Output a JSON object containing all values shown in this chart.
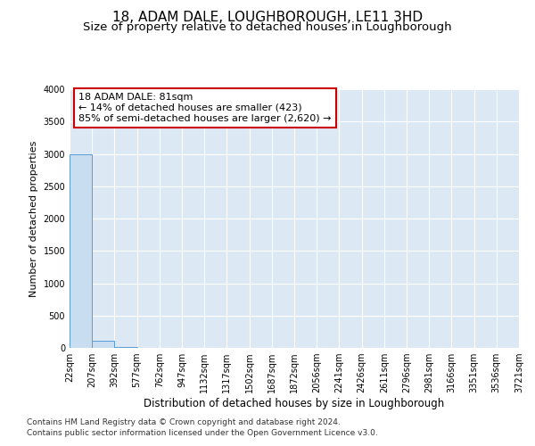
{
  "title": "18, ADAM DALE, LOUGHBOROUGH, LE11 3HD",
  "subtitle": "Size of property relative to detached houses in Loughborough",
  "xlabel": "Distribution of detached houses by size in Loughborough",
  "ylabel": "Number of detached properties",
  "footnote1": "Contains HM Land Registry data © Crown copyright and database right 2024.",
  "footnote2": "Contains public sector information licensed under the Open Government Licence v3.0.",
  "annotation_line1": "18 ADAM DALE: 81sqm",
  "annotation_line2": "← 14% of detached houses are smaller (423)",
  "annotation_line3": "85% of semi-detached houses are larger (2,620) →",
  "bar_edges": [
    22,
    207,
    392,
    577,
    762,
    947,
    1132,
    1317,
    1502,
    1687,
    1872,
    2056,
    2241,
    2426,
    2611,
    2796,
    2981,
    3166,
    3351,
    3536,
    3721
  ],
  "bar_heights": [
    2990,
    105,
    10,
    5,
    3,
    2,
    1,
    1,
    1,
    1,
    0,
    0,
    0,
    0,
    0,
    0,
    0,
    0,
    0,
    0
  ],
  "bar_color": "#c8ddf0",
  "bar_edge_color": "#5b9bd5",
  "ylim": [
    0,
    4000
  ],
  "yticks": [
    0,
    500,
    1000,
    1500,
    2000,
    2500,
    3000,
    3500,
    4000
  ],
  "plot_bg_color": "#dce9f5",
  "annotation_border_color": "#cc0000",
  "title_fontsize": 11,
  "subtitle_fontsize": 9.5,
  "axis_label_fontsize": 8,
  "ylabel_fontsize": 8,
  "tick_fontsize": 7,
  "annotation_fontsize": 8,
  "footnote_fontsize": 6.5
}
